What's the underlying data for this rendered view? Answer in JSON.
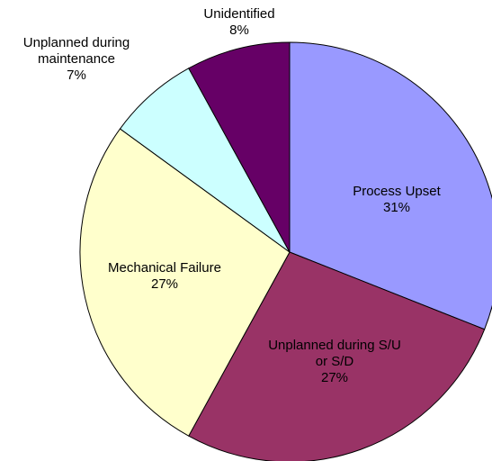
{
  "chart_data": {
    "type": "pie",
    "categories": [
      "Process Upset",
      "Unplanned during S/U or S/D",
      "Mechanical Failure",
      "Unplanned during maintenance",
      "Unidentified"
    ],
    "values": [
      31,
      27,
      27,
      7,
      8
    ],
    "value_labels": [
      "31%",
      "27%",
      "27%",
      "7%",
      "8%"
    ],
    "colors": [
      "#9999ff",
      "#993366",
      "#ffffcc",
      "#ccffff",
      "#660066"
    ]
  }
}
